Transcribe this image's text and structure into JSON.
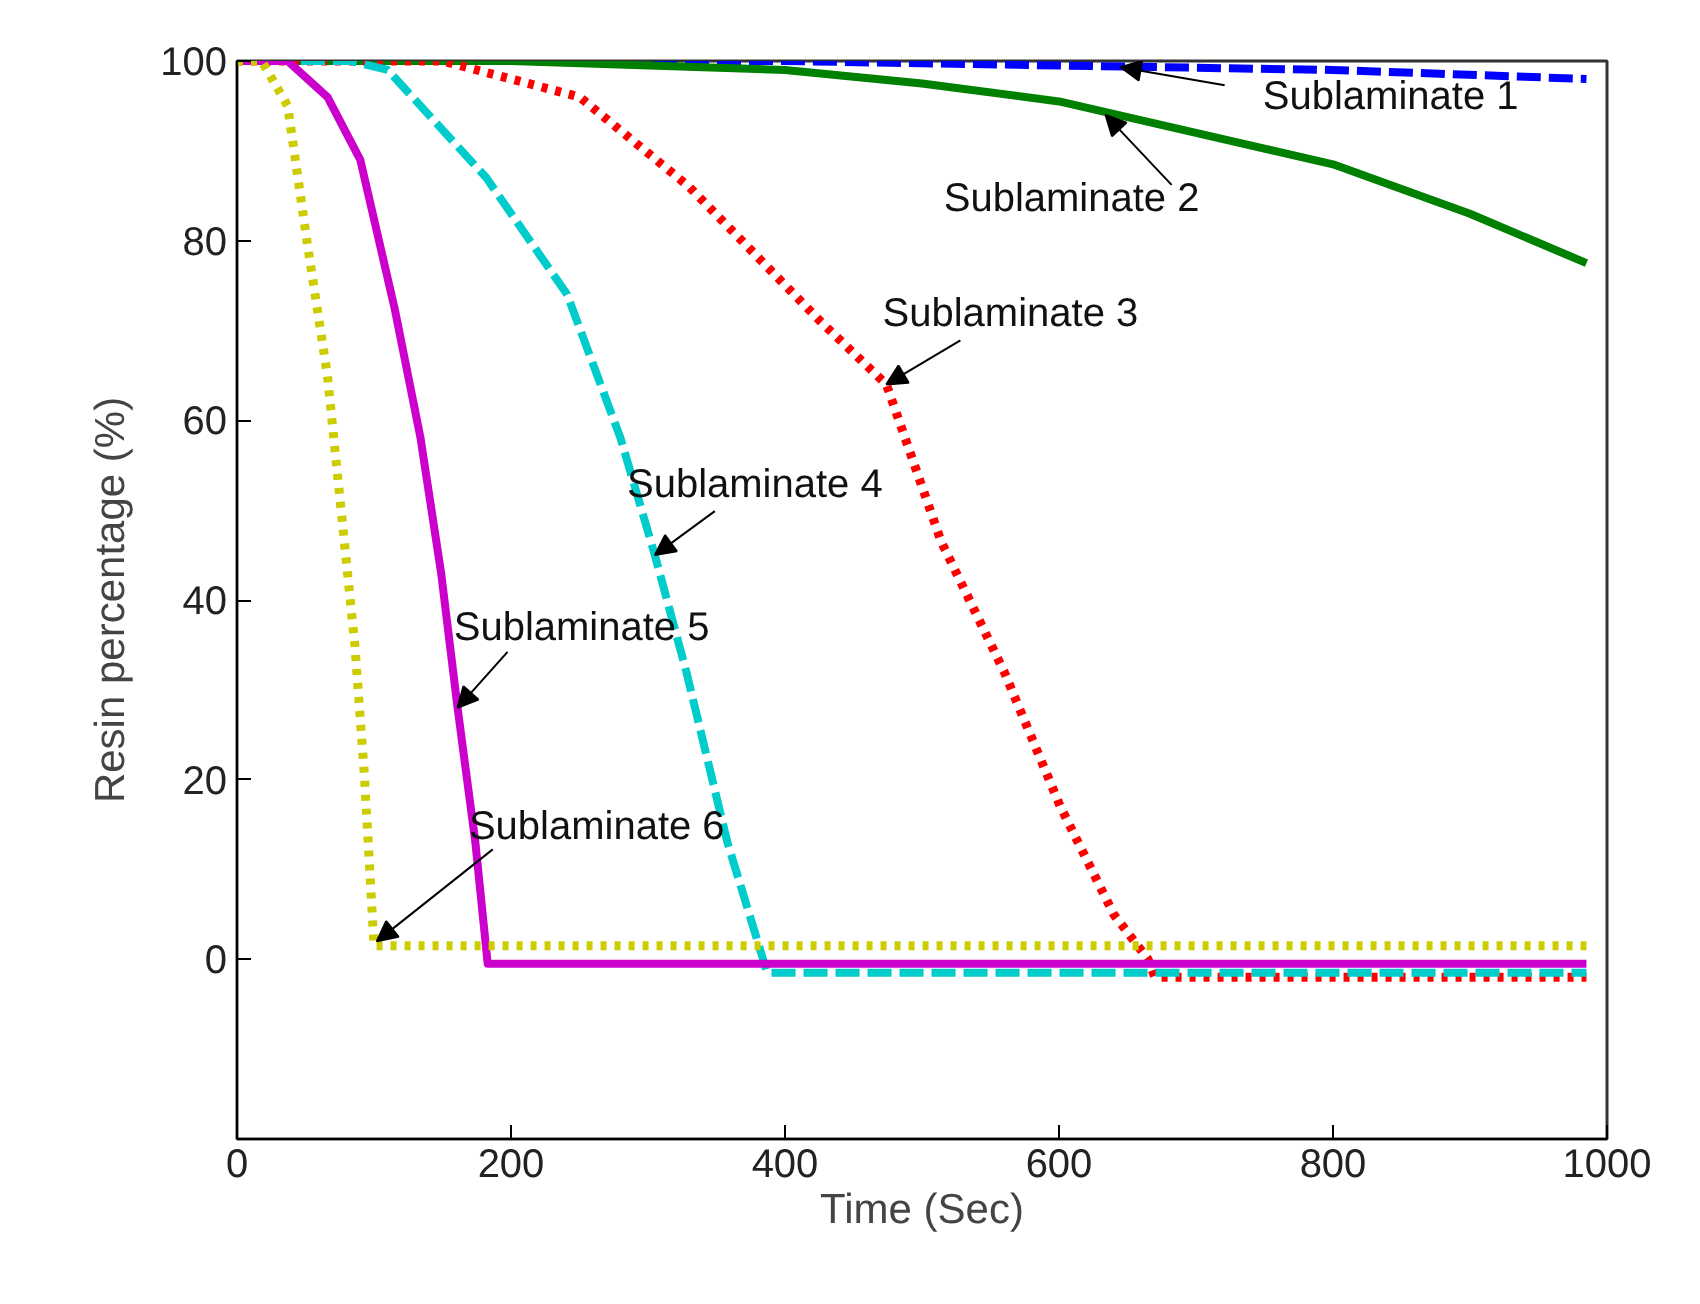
{
  "chart_data": {
    "type": "line",
    "xlabel": "Time (Sec)",
    "ylabel": "Resin percentage (%)",
    "xlim": [
      0,
      1000
    ],
    "ylim": [
      -20,
      100
    ],
    "xticks": [
      0,
      200,
      400,
      600,
      800,
      1000
    ],
    "yticks": [
      0,
      20,
      40,
      60,
      80,
      100
    ],
    "series": [
      {
        "color": "#0000ff",
        "line_style": "dashed",
        "x": [
          0,
          400,
          600,
          800,
          985
        ],
        "values": [
          100,
          100,
          99.5,
          99,
          98
        ]
      },
      {
        "color": "#008000",
        "line_style": "solid",
        "x": [
          0,
          200,
          400,
          500,
          600,
          700,
          800,
          900,
          985
        ],
        "values": [
          100,
          100,
          99,
          97.5,
          95.5,
          92,
          88.5,
          83,
          77.5
        ]
      },
      {
        "color": "#ff0000",
        "line_style": "dotted",
        "x": [
          0,
          150,
          200,
          250,
          330,
          426,
          474,
          514,
          560,
          601,
          640,
          665,
          670,
          985
        ],
        "values": [
          100,
          100,
          98,
          96,
          86,
          71,
          64,
          46.5,
          32,
          17,
          5,
          0,
          -2,
          -2
        ]
      },
      {
        "color": "#00cccc",
        "line_style": "dashed",
        "x": [
          0,
          83,
          110,
          182,
          241,
          280,
          305,
          328,
          358,
          382,
          387,
          985
        ],
        "values": [
          100,
          100,
          99,
          87,
          74,
          58,
          45,
          32,
          13,
          1,
          -1.5,
          -1.5
        ]
      },
      {
        "color": "#cc00cc",
        "line_style": "solid",
        "x": [
          0,
          37,
          66,
          90,
          115,
          134,
          149,
          161,
          174,
          183,
          985
        ],
        "values": [
          100,
          100,
          96,
          89,
          72.5,
          58,
          43,
          28,
          13,
          -0.5,
          -0.5
        ]
      },
      {
        "color": "#cccc00",
        "line_style": "dotted",
        "x": [
          0,
          18,
          37,
          51,
          66,
          76,
          86,
          93,
          100,
          985
        ],
        "values": [
          100,
          100,
          95,
          80,
          65,
          50,
          35,
          20.5,
          1.5,
          1.5
        ]
      }
    ],
    "annotations": [
      {
        "text": "Sublaminate 1",
        "x": 645,
        "y": 99.3
      },
      {
        "text": "Sublaminate 2",
        "x": 634,
        "y": 94
      },
      {
        "text": "Sublaminate 3",
        "x": 474,
        "y": 64
      },
      {
        "text": "Sublaminate 4",
        "x": 305,
        "y": 45
      },
      {
        "text": "Sublaminate 5",
        "x": 161,
        "y": 28
      },
      {
        "text": "Sublaminate 6",
        "x": 102,
        "y": 2
      }
    ]
  }
}
